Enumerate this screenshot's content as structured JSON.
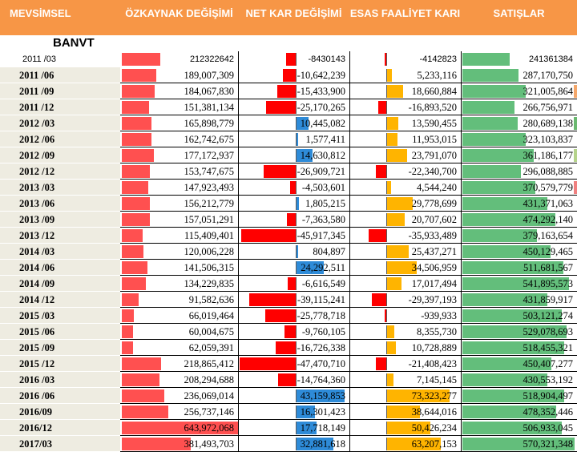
{
  "headers": [
    "MEVSİMSEL",
    "ÖZKAYNAK DEĞİŞİMİ",
    "NET KAR DEĞİŞİMİ",
    "ESAS FAALİYET KARI",
    "SATIŞLAR"
  ],
  "company": "BANVT",
  "colors": {
    "header_bg": "#f79646",
    "label_bg": "#eeece1",
    "equity_bar": "#ff5050",
    "negative_bar": "#ff0000",
    "positive_netprofit_bar": "#2e8bd8",
    "operating_bar": "#ffb400",
    "sales_bar": "#63be7b"
  },
  "rows": [
    {
      "period": "2011 /03",
      "equity": "212322642",
      "net_profit": "-8430143",
      "operating_profit": "-4142823",
      "sales": "241361384"
    },
    {
      "period": "2011 /06",
      "equity": "189,007,309",
      "net_profit": "-10,642,239",
      "operating_profit": "5,233,116",
      "sales": "287,170,750"
    },
    {
      "period": "2011 /09",
      "equity": "184,067,830",
      "net_profit": "-15,433,900",
      "operating_profit": "18,660,884",
      "sales": "321,005,864"
    },
    {
      "period": "2011 /12",
      "equity": "151,381,134",
      "net_profit": "-25,170,265",
      "operating_profit": "-16,893,520",
      "sales": "266,756,971"
    },
    {
      "period": "2012 /03",
      "equity": "165,898,779",
      "net_profit": "10,445,082",
      "operating_profit": "13,590,455",
      "sales": "280,689,138"
    },
    {
      "period": "2012 /06",
      "equity": "162,742,675",
      "net_profit": "1,577,411",
      "operating_profit": "11,953,015",
      "sales": "323,103,837"
    },
    {
      "period": "2012 /09",
      "equity": "177,172,937",
      "net_profit": "14,630,812",
      "operating_profit": "23,791,070",
      "sales": "361,186,177"
    },
    {
      "period": "2012 /12",
      "equity": "153,747,675",
      "net_profit": "-26,909,721",
      "operating_profit": "-22,340,700",
      "sales": "296,088,885"
    },
    {
      "period": "2013 /03",
      "equity": "147,923,493",
      "net_profit": "-4,503,601",
      "operating_profit": "4,544,240",
      "sales": "370,579,779"
    },
    {
      "period": "2013 /06",
      "equity": "156,212,779",
      "net_profit": "1,805,215",
      "operating_profit": "29,778,699",
      "sales": "431,371,063"
    },
    {
      "period": "2013 /09",
      "equity": "157,051,291",
      "net_profit": "-7,363,580",
      "operating_profit": "20,707,602",
      "sales": "474,292,140"
    },
    {
      "period": "2013 /12",
      "equity": "115,409,401",
      "net_profit": "-45,917,345",
      "operating_profit": "-35,933,489",
      "sales": "379,163,654"
    },
    {
      "period": "2014 /03",
      "equity": "120,006,228",
      "net_profit": "804,897",
      "operating_profit": "25,437,271",
      "sales": "450,129,465"
    },
    {
      "period": "2014 /06",
      "equity": "141,506,315",
      "net_profit": "24,292,511",
      "operating_profit": "34,506,959",
      "sales": "511,681,567"
    },
    {
      "period": "2014 /09",
      "equity": "134,229,835",
      "net_profit": "-6,616,549",
      "operating_profit": "17,017,494",
      "sales": "541,895,573"
    },
    {
      "period": "2014 /12",
      "equity": "91,582,636",
      "net_profit": "-39,115,241",
      "operating_profit": "-29,397,193",
      "sales": "431,859,917"
    },
    {
      "period": "2015 /03",
      "equity": "66,019,464",
      "net_profit": "-25,778,718",
      "operating_profit": "-939,933",
      "sales": "503,121,274"
    },
    {
      "period": "2015 /06",
      "equity": "60,004,675",
      "net_profit": "-9,760,105",
      "operating_profit": "8,355,730",
      "sales": "529,078,693"
    },
    {
      "period": "2015 /09",
      "equity": "62,059,391",
      "net_profit": "-16,726,338",
      "operating_profit": "10,728,889",
      "sales": "518,455,321"
    },
    {
      "period": "2015 /12",
      "equity": "218,865,412",
      "net_profit": "-47,470,710",
      "operating_profit": "-21,408,423",
      "sales": "450,407,277"
    },
    {
      "period": "2016 /03",
      "equity": "208,294,688",
      "net_profit": "-14,764,360",
      "operating_profit": "7,145,145",
      "sales": "430,553,192"
    },
    {
      "period": "2016 /06",
      "equity": "236,069,014",
      "net_profit": "43,159,853",
      "operating_profit": "73,323,277",
      "sales": "518,904,497"
    },
    {
      "period": "2016/09",
      "equity": "256,737,146",
      "net_profit": "16,301,423",
      "operating_profit": "38,644,016",
      "sales": "478,352,446"
    },
    {
      "period": "2016/12",
      "equity": "643,972,068",
      "net_profit": "17,718,149",
      "operating_profit": "50,426,234",
      "sales": "506,933,045"
    },
    {
      "period": "2017/03",
      "equity": "381,493,703",
      "net_profit": "32,881,618",
      "operating_profit": "63,207,153",
      "sales": "570,321,348"
    }
  ]
}
